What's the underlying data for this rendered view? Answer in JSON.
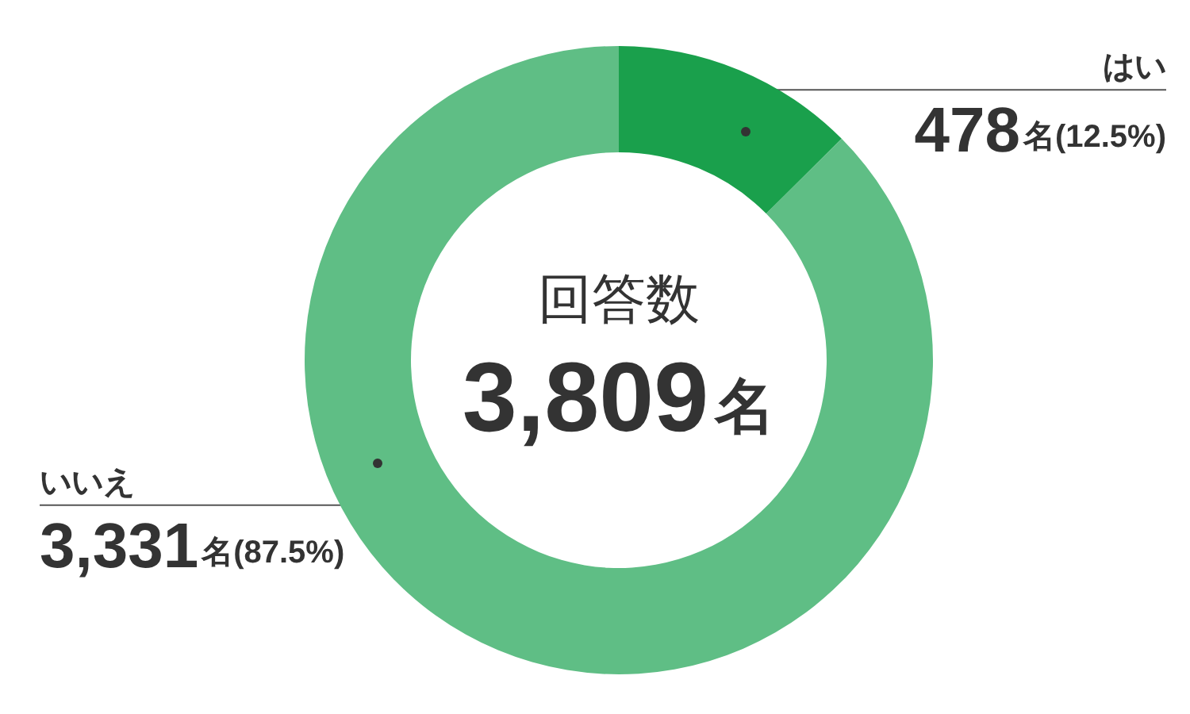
{
  "chart_data": {
    "type": "donut",
    "title": "回答数",
    "annotations": [
      "3,809名"
    ],
    "categories": [
      "はい",
      "いいえ"
    ],
    "values": [
      478,
      3331
    ],
    "colors": [
      "#1aa04c",
      "#5fbe85"
    ],
    "value_labels": [
      "478名(12.5%)",
      "3,331名(87.5%)"
    ]
  }
}
